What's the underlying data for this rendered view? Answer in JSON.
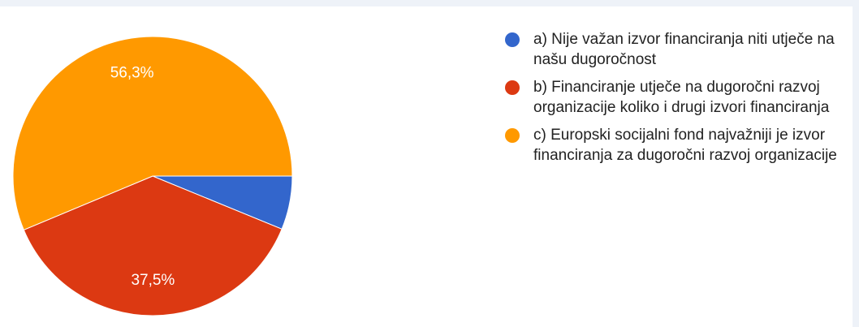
{
  "chart_data": {
    "type": "pie",
    "categories": [
      "a) Nije važan izvor financiranja niti utječe na našu dugoročnost",
      "b) Financiranje utječe na dugoročni razvoj organizacije koliko i drugi izvori financiranja",
      "c) Europski socijalni fond najvažniji je izvor financiranja za dugoročni razvoj organizacije"
    ],
    "values": [
      6.2,
      37.5,
      56.3
    ],
    "value_labels": [
      null,
      "37,5%",
      "56,3%"
    ],
    "colors": [
      "#3366cc",
      "#dc3912",
      "#ff9900"
    ],
    "legend": "right"
  }
}
